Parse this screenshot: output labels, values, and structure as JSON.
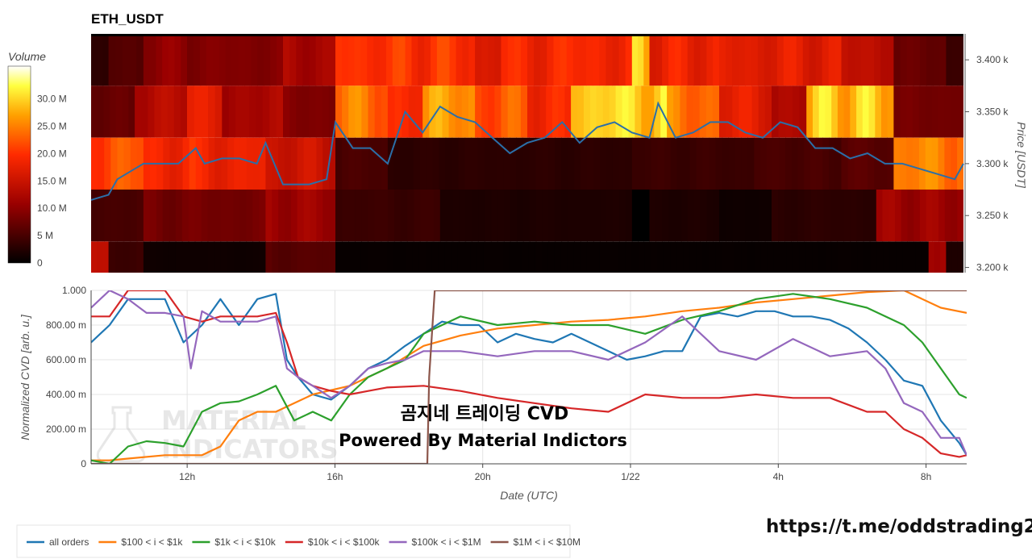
{
  "chart_title": "ETH_USDT",
  "link_text": "https://t.me/oddstrading2",
  "watermark": {
    "line1": "MATERIAL",
    "line2": "INDICATORS"
  },
  "overlay": {
    "line1": "곰지네 트레이딩 CVD",
    "line2": "Powered By Material Indictors"
  },
  "colors": {
    "all_orders": "#1f77b4",
    "s100_1k": "#ff7f0e",
    "s1k_10k": "#2ca02c",
    "s10k_100k": "#d62728",
    "s100k_1m": "#9467bd",
    "s1m_10m": "#8c564b",
    "price": "#2b6fa8"
  },
  "chart_data": [
    {
      "type": "heatmap",
      "colorbar_title": "Volume",
      "colorbar_ticks": [
        "0",
        "5 M",
        "10.0 M",
        "15.0 M",
        "20.0 M",
        "25.0 M",
        "30.0 M"
      ],
      "colorbar_values": [
        0,
        5,
        10,
        15,
        20,
        25,
        30
      ],
      "colorbar_range": [
        0,
        36
      ],
      "ylabel": "Price [USDT]",
      "price_ticks": [
        "3.200 k",
        "3.250 k",
        "3.300 k",
        "3.350 k",
        "3.400 k"
      ],
      "price_tick_values": [
        3200,
        3250,
        3300,
        3350,
        3400
      ],
      "ylim": [
        3195,
        3425
      ],
      "price_bins": [
        3425,
        3375,
        3325,
        3275,
        3225,
        3195
      ],
      "bands": [
        {
          "name": "3375-3425",
          "segments": [
            [
              0,
              0.02,
              3
            ],
            [
              0.02,
              0.06,
              6
            ],
            [
              0.06,
              0.11,
              10
            ],
            [
              0.11,
              0.22,
              9
            ],
            [
              0.22,
              0.28,
              12
            ],
            [
              0.28,
              0.44,
              20
            ],
            [
              0.44,
              0.47,
              16
            ],
            [
              0.47,
              0.62,
              19
            ],
            [
              0.62,
              0.64,
              28
            ],
            [
              0.64,
              0.72,
              18
            ],
            [
              0.72,
              0.86,
              17
            ],
            [
              0.86,
              0.92,
              14
            ],
            [
              0.92,
              0.98,
              7
            ],
            [
              0.98,
              1.0,
              4
            ]
          ]
        },
        {
          "name": "3325-3375",
          "segments": [
            [
              0,
              0.05,
              7
            ],
            [
              0.05,
              0.11,
              13
            ],
            [
              0.11,
              0.15,
              18
            ],
            [
              0.15,
              0.22,
              12
            ],
            [
              0.22,
              0.28,
              9
            ],
            [
              0.28,
              0.34,
              24
            ],
            [
              0.34,
              0.38,
              20
            ],
            [
              0.38,
              0.44,
              26
            ],
            [
              0.44,
              0.5,
              22
            ],
            [
              0.5,
              0.55,
              19
            ],
            [
              0.55,
              0.66,
              30
            ],
            [
              0.66,
              0.72,
              24
            ],
            [
              0.72,
              0.78,
              17
            ],
            [
              0.78,
              0.82,
              13
            ],
            [
              0.82,
              0.92,
              29
            ],
            [
              0.92,
              1.0,
              8
            ]
          ]
        },
        {
          "name": "3275-3325",
          "segments": [
            [
              0,
              0.06,
              22
            ],
            [
              0.06,
              0.12,
              19
            ],
            [
              0.12,
              0.2,
              18
            ],
            [
              0.2,
              0.28,
              15
            ],
            [
              0.28,
              0.34,
              5
            ],
            [
              0.34,
              0.62,
              3
            ],
            [
              0.62,
              0.76,
              4
            ],
            [
              0.76,
              0.86,
              5
            ],
            [
              0.86,
              0.92,
              6
            ],
            [
              0.92,
              1.0,
              25
            ]
          ]
        },
        {
          "name": "3225-3275",
          "segments": [
            [
              0,
              0.06,
              5
            ],
            [
              0.06,
              0.2,
              8
            ],
            [
              0.2,
              0.28,
              11
            ],
            [
              0.28,
              0.4,
              4
            ],
            [
              0.4,
              0.62,
              2
            ],
            [
              0.62,
              0.64,
              0
            ],
            [
              0.64,
              0.72,
              2
            ],
            [
              0.72,
              0.78,
              1
            ],
            [
              0.78,
              0.9,
              3
            ],
            [
              0.9,
              1.0,
              11
            ]
          ]
        },
        {
          "name": "3195-3225",
          "segments": [
            [
              0,
              0.02,
              14
            ],
            [
              0.02,
              0.06,
              4
            ],
            [
              0.06,
              0.2,
              1
            ],
            [
              0.2,
              0.28,
              6
            ],
            [
              0.28,
              0.96,
              0.5
            ],
            [
              0.96,
              0.98,
              12
            ],
            [
              0.98,
              1.0,
              2
            ]
          ]
        }
      ],
      "price_line": {
        "x": [
          0,
          0.02,
          0.03,
          0.05,
          0.06,
          0.08,
          0.1,
          0.12,
          0.13,
          0.15,
          0.17,
          0.19,
          0.2,
          0.22,
          0.25,
          0.27,
          0.28,
          0.3,
          0.32,
          0.34,
          0.36,
          0.38,
          0.4,
          0.42,
          0.44,
          0.46,
          0.48,
          0.5,
          0.52,
          0.54,
          0.56,
          0.58,
          0.6,
          0.62,
          0.64,
          0.65,
          0.67,
          0.69,
          0.71,
          0.73,
          0.75,
          0.77,
          0.79,
          0.81,
          0.83,
          0.85,
          0.87,
          0.89,
          0.91,
          0.93,
          0.95,
          0.97,
          0.99,
          1.0
        ],
        "y": [
          3265,
          3270,
          3285,
          3295,
          3300,
          3300,
          3300,
          3315,
          3300,
          3305,
          3305,
          3300,
          3320,
          3280,
          3280,
          3285,
          3340,
          3315,
          3315,
          3300,
          3350,
          3330,
          3355,
          3345,
          3340,
          3325,
          3310,
          3320,
          3325,
          3340,
          3320,
          3335,
          3340,
          3330,
          3325,
          3358,
          3325,
          3330,
          3340,
          3340,
          3330,
          3325,
          3340,
          3335,
          3315,
          3315,
          3305,
          3310,
          3300,
          3300,
          3295,
          3290,
          3285,
          3300
        ]
      }
    },
    {
      "type": "line",
      "xlabel": "Date (UTC)",
      "ylabel": "Normalized CVD [arb. u.]",
      "ylim": [
        0,
        1.0
      ],
      "y_ticks": [
        "0",
        "200.00 m",
        "400.00 m",
        "600.00 m",
        "800.00 m",
        "1.000"
      ],
      "y_tick_values": [
        0,
        0.2,
        0.4,
        0.6,
        0.8,
        1.0
      ],
      "x_ticks": [
        "12h",
        "16h",
        "20h",
        "1/22",
        "4h",
        "8h"
      ],
      "x_tick_values": [
        2.6,
        6.6,
        10.6,
        14.6,
        18.6,
        22.6
      ],
      "xlim": [
        0,
        23.7
      ],
      "series": [
        {
          "name": "all orders",
          "x": [
            0,
            0.5,
            1,
            1.5,
            2,
            2.5,
            3,
            3.5,
            4,
            4.5,
            5,
            5.3,
            5.6,
            6,
            6.5,
            7,
            7.5,
            8,
            8.5,
            9,
            9.5,
            10,
            10.5,
            11,
            11.5,
            12,
            12.5,
            13,
            13.5,
            14,
            14.5,
            15,
            15.5,
            16,
            16.5,
            17,
            17.5,
            18,
            18.5,
            19,
            19.5,
            20,
            20.5,
            21,
            21.5,
            22,
            22.5,
            23,
            23.5,
            23.7
          ],
          "y": [
            0.7,
            0.8,
            0.95,
            0.95,
            0.95,
            0.7,
            0.8,
            0.95,
            0.8,
            0.95,
            0.98,
            0.6,
            0.5,
            0.4,
            0.37,
            0.45,
            0.55,
            0.6,
            0.68,
            0.75,
            0.82,
            0.8,
            0.8,
            0.7,
            0.75,
            0.72,
            0.7,
            0.75,
            0.7,
            0.65,
            0.6,
            0.62,
            0.65,
            0.65,
            0.85,
            0.87,
            0.85,
            0.88,
            0.88,
            0.85,
            0.85,
            0.83,
            0.78,
            0.7,
            0.6,
            0.48,
            0.45,
            0.25,
            0.12,
            0.05
          ]
        },
        {
          "name": "$100 < i < $1k",
          "x": [
            0,
            0.5,
            1,
            2,
            3,
            3.5,
            4,
            4.5,
            5,
            5.5,
            6,
            7,
            8,
            9,
            10,
            11,
            12,
            13,
            14,
            15,
            16,
            17,
            18,
            19,
            20,
            21,
            22,
            23,
            23.7
          ],
          "y": [
            0.02,
            0.02,
            0.03,
            0.05,
            0.05,
            0.1,
            0.25,
            0.3,
            0.3,
            0.35,
            0.4,
            0.45,
            0.55,
            0.68,
            0.74,
            0.78,
            0.8,
            0.82,
            0.83,
            0.85,
            0.88,
            0.9,
            0.93,
            0.95,
            0.97,
            0.99,
            1.0,
            0.9,
            0.87
          ]
        },
        {
          "name": "$1k < i < $10k",
          "x": [
            0,
            0.5,
            1,
            1.5,
            2,
            2.5,
            3,
            3.5,
            4,
            4.5,
            5,
            5.5,
            6,
            6.5,
            7,
            7.5,
            8,
            8.5,
            9,
            10,
            11,
            12,
            13,
            14,
            15,
            16,
            17,
            18,
            19,
            20,
            21,
            21.5,
            22,
            22.5,
            23,
            23.5,
            23.7
          ],
          "y": [
            0.02,
            0.0,
            0.1,
            0.13,
            0.12,
            0.1,
            0.3,
            0.35,
            0.36,
            0.4,
            0.45,
            0.25,
            0.3,
            0.25,
            0.4,
            0.5,
            0.55,
            0.6,
            0.75,
            0.85,
            0.8,
            0.82,
            0.8,
            0.8,
            0.75,
            0.83,
            0.88,
            0.95,
            0.98,
            0.95,
            0.9,
            0.85,
            0.8,
            0.7,
            0.55,
            0.4,
            0.38
          ]
        },
        {
          "name": "$10k < i < $100k",
          "x": [
            0,
            0.5,
            1,
            1.5,
            2,
            2.5,
            3,
            3.5,
            4,
            4.5,
            5,
            5.3,
            5.6,
            6,
            6.5,
            7,
            7.5,
            8,
            9,
            10,
            11,
            12,
            13,
            14,
            15,
            16,
            17,
            18,
            19,
            20,
            21,
            21.5,
            22,
            22.5,
            23,
            23.5,
            23.7
          ],
          "y": [
            0.85,
            0.85,
            1.0,
            1.0,
            1.0,
            0.85,
            0.82,
            0.85,
            0.85,
            0.85,
            0.87,
            0.7,
            0.5,
            0.45,
            0.42,
            0.4,
            0.42,
            0.44,
            0.45,
            0.42,
            0.38,
            0.35,
            0.32,
            0.3,
            0.4,
            0.38,
            0.38,
            0.4,
            0.38,
            0.38,
            0.3,
            0.3,
            0.2,
            0.15,
            0.06,
            0.04,
            0.05
          ]
        },
        {
          "name": "$100k < i < $1M",
          "x": [
            0,
            0.5,
            1,
            1.5,
            2,
            2.5,
            2.7,
            3,
            3.5,
            4,
            4.5,
            5,
            5.3,
            5.6,
            6,
            6.5,
            7,
            7.5,
            8,
            8.5,
            9,
            10,
            11,
            12,
            13,
            14,
            15,
            16,
            17,
            18,
            19,
            20,
            21,
            21.5,
            22,
            22.5,
            23,
            23.5,
            23.7
          ],
          "y": [
            0.9,
            1.0,
            0.95,
            0.87,
            0.87,
            0.85,
            0.55,
            0.88,
            0.82,
            0.82,
            0.82,
            0.85,
            0.55,
            0.5,
            0.45,
            0.38,
            0.45,
            0.55,
            0.58,
            0.6,
            0.65,
            0.65,
            0.62,
            0.65,
            0.65,
            0.6,
            0.7,
            0.85,
            0.65,
            0.6,
            0.72,
            0.62,
            0.65,
            0.55,
            0.35,
            0.3,
            0.15,
            0.15,
            0.05
          ]
        },
        {
          "name": "$1M < i < $10M",
          "x": [
            0,
            9.1,
            9.15,
            9.3,
            10,
            12,
            14,
            16,
            18,
            20,
            22,
            23.7
          ],
          "y": [
            0,
            0,
            0.5,
            1.0,
            1.0,
            1.0,
            1.0,
            1.0,
            1.0,
            1.0,
            1.0,
            1.0
          ]
        }
      ]
    }
  ]
}
